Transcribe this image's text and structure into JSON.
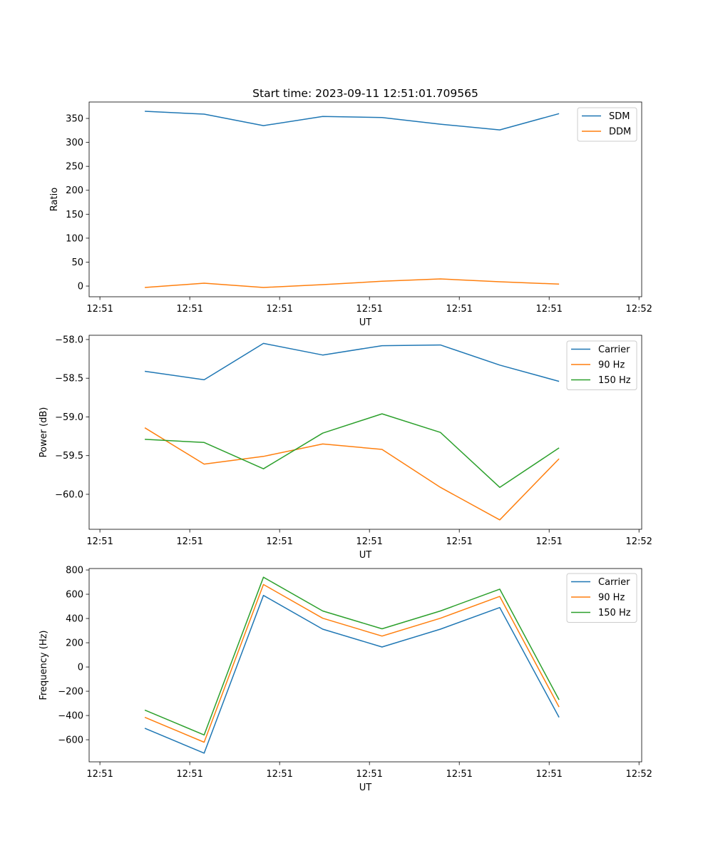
{
  "chart_data": [
    {
      "type": "line",
      "title": "Start time: 2023-09-11 12:51:01.709565",
      "xlabel": "UT",
      "ylabel": "Ratio",
      "x": [
        5.0,
        11.6,
        18.2,
        24.8,
        31.4,
        37.9,
        44.5,
        51.1
      ],
      "xlim": [
        -1.2,
        60.3
      ],
      "xticks": [
        0,
        10,
        20,
        30,
        40,
        50,
        60
      ],
      "xtick_labels": [
        "12:51",
        "12:51",
        "12:51",
        "12:51",
        "12:51",
        "12:51",
        "12:52"
      ],
      "ylim": [
        -22.3,
        384.3
      ],
      "yticks": [
        0,
        50,
        100,
        150,
        200,
        250,
        300,
        350
      ],
      "ytick_labels": [
        "0",
        "50",
        "100",
        "150",
        "200",
        "250",
        "300",
        "350"
      ],
      "legend": "top-right",
      "series": [
        {
          "name": "SDM",
          "color": "#1f77b4",
          "values": [
            365,
            359,
            335,
            354,
            352,
            338,
            326,
            360
          ]
        },
        {
          "name": "DDM",
          "color": "#ff7f0e",
          "values": [
            -3,
            6,
            -3,
            3,
            10,
            15,
            9,
            4
          ]
        }
      ]
    },
    {
      "type": "line",
      "title": "",
      "xlabel": "UT",
      "ylabel": "Power (dB)",
      "x": [
        5.0,
        11.6,
        18.2,
        24.8,
        31.4,
        37.9,
        44.5,
        51.1
      ],
      "xlim": [
        -1.2,
        60.3
      ],
      "xticks": [
        0,
        10,
        20,
        30,
        40,
        50,
        60
      ],
      "xtick_labels": [
        "12:51",
        "12:51",
        "12:51",
        "12:51",
        "12:51",
        "12:51",
        "12:52"
      ],
      "ylim": [
        -60.452,
        -57.945
      ],
      "yticks": [
        -58.0,
        -58.5,
        -59.0,
        -59.5,
        -60.0
      ],
      "ytick_labels": [
        "−58.0",
        "−58.5",
        "−59.0",
        "−59.5",
        "−60.0"
      ],
      "legend": "top-right",
      "series": [
        {
          "name": "Carrier",
          "color": "#1f77b4",
          "values": [
            -58.41,
            -58.52,
            -58.05,
            -58.2,
            -58.08,
            -58.07,
            -58.33,
            -58.54
          ]
        },
        {
          "name": "90 Hz",
          "color": "#ff7f0e",
          "values": [
            -59.14,
            -59.61,
            -59.51,
            -59.35,
            -59.42,
            -59.91,
            -60.33,
            -59.54
          ]
        },
        {
          "name": "150 Hz",
          "color": "#2ca02c",
          "values": [
            -59.29,
            -59.33,
            -59.67,
            -59.21,
            -58.96,
            -59.2,
            -59.91,
            -59.4
          ]
        }
      ]
    },
    {
      "type": "line",
      "title": "",
      "xlabel": "UT",
      "ylabel": "Frequency (Hz)",
      "x": [
        5.0,
        11.6,
        18.2,
        24.8,
        31.4,
        37.9,
        44.5,
        51.1
      ],
      "xlim": [
        -1.2,
        60.3
      ],
      "xticks": [
        0,
        10,
        20,
        30,
        40,
        50,
        60
      ],
      "xtick_labels": [
        "12:51",
        "12:51",
        "12:51",
        "12:51",
        "12:51",
        "12:51",
        "12:52"
      ],
      "ylim": [
        -782,
        812
      ],
      "yticks": [
        -600,
        -400,
        -200,
        0,
        200,
        400,
        600,
        800
      ],
      "ytick_labels": [
        "−600",
        "−400",
        "−200",
        "0",
        "200",
        "400",
        "600",
        "800"
      ],
      "legend": "top-right",
      "series": [
        {
          "name": "Carrier",
          "color": "#1f77b4",
          "values": [
            -505,
            -710,
            590,
            312,
            165,
            312,
            490,
            -415
          ]
        },
        {
          "name": "90 Hz",
          "color": "#ff7f0e",
          "values": [
            -415,
            -620,
            680,
            402,
            255,
            402,
            582,
            -330
          ]
        },
        {
          "name": "150 Hz",
          "color": "#2ca02c",
          "values": [
            -355,
            -560,
            740,
            462,
            315,
            462,
            642,
            -270
          ]
        }
      ]
    }
  ]
}
